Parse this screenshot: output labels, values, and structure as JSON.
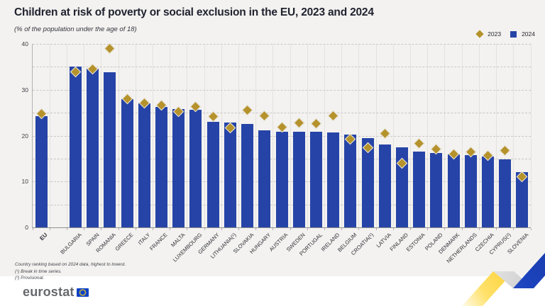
{
  "header": {
    "title": "Children at risk of poverty or social exclusion in the EU, 2023 and 2024",
    "subtitle": "(% of the population under the age of 18)"
  },
  "legend": [
    {
      "label": "2023",
      "marker": "diamond",
      "color": "#b5922b"
    },
    {
      "label": "2024",
      "marker": "square",
      "color": "#2644a7"
    }
  ],
  "chart_data": {
    "type": "bar",
    "title": "Children at risk of poverty or social exclusion in the EU, 2023 and 2024",
    "subtitle": "(% of the population under the age of 18)",
    "unit": "%",
    "ylim": [
      0,
      40
    ],
    "yticks": [
      0,
      10,
      20,
      30,
      40
    ],
    "grid": "horizontal dashed every 5, vertical column separators",
    "legend_position": "top-right",
    "ranking_note": "ranked by 2024 value, highest to lowest; EU shown separately first",
    "categories": [
      "EU",
      "BULGARIA",
      "SPAIN",
      "ROMANIA",
      "GREECE",
      "ITALY",
      "FRANCE",
      "MALTA",
      "LUXEMBOURG",
      "GERMANY",
      "LITHUANIA(¹)",
      "SLOVAKIA",
      "HUNGARY",
      "AUSTRIA",
      "SWEDEN",
      "PORTUGAL",
      "IRELAND",
      "BELGIUM",
      "CROATIA(¹)",
      "LATVIA",
      "FINLAND",
      "ESTONIA",
      "POLAND",
      "DENMARK",
      "NETHERLANDS",
      "CZECHIA",
      "CYPRUS(²)",
      "SLOVENIA"
    ],
    "series": [
      {
        "name": "2023",
        "style": "diamond",
        "values": [
          24.8,
          33.9,
          34.5,
          39.0,
          28.1,
          27.1,
          26.6,
          25.2,
          26.3,
          24.1,
          21.7,
          25.5,
          24.4,
          21.8,
          22.8,
          22.7,
          24.3,
          19.2,
          17.4,
          20.5,
          13.9,
          18.3,
          17.1,
          16.0,
          16.4,
          15.6,
          16.7,
          11.0
        ]
      },
      {
        "name": "2024",
        "style": "bar",
        "values": [
          24.2,
          35.1,
          34.6,
          33.8,
          28.0,
          27.1,
          26.3,
          25.8,
          25.6,
          23.0,
          22.8,
          22.6,
          21.1,
          20.9,
          20.9,
          20.8,
          20.7,
          20.2,
          19.4,
          18.0,
          17.4,
          16.5,
          16.2,
          15.9,
          15.8,
          15.4,
          14.9,
          12.0
        ]
      }
    ]
  },
  "footnotes": [
    "Country ranking based on 2024 data, highest to lowest.",
    "(¹) Break in time series.",
    "(²) Provisional."
  ],
  "logo": {
    "text": "eurostat"
  },
  "colors": {
    "bar_2024": "#2644a7",
    "diamond_2023": "#b5922b",
    "panel_background": "#f3f2f0",
    "accent_yellow": "#ffd617",
    "accent_blue": "#1c43bd"
  }
}
